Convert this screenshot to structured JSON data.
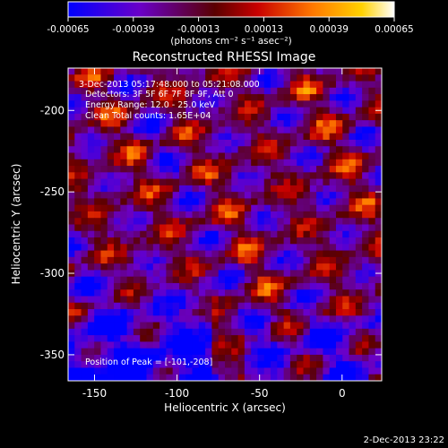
{
  "chart_data": {
    "type": "heatmap",
    "title": "Reconstructed RHESSI Image",
    "xlabel": "Heliocentric X (arcsec)",
    "ylabel": "Heliocentric Y (arcsec)",
    "xlim": [
      -166,
      24
    ],
    "ylim": [
      -366,
      -174
    ],
    "x_ticks": [
      -150,
      -100,
      -50,
      0
    ],
    "y_ticks": [
      -200,
      -250,
      -300,
      -350
    ],
    "colorbar": {
      "ticks": [
        "-0.00065",
        "-0.00039",
        "-0.00013",
        "0.00013",
        "0.00039",
        "0.00065"
      ],
      "range": [
        -0.00065,
        0.00065
      ],
      "unit_label": "(photons cm⁻² s⁻¹ asec⁻²)",
      "colormap": [
        "#0000ff",
        "#6a00c8",
        "#5a0000",
        "#c80000",
        "#ff7800",
        "#ffd200",
        "#ffffff"
      ]
    },
    "annotations": [
      " 3-Dec-2013 05:17:48.000 to 05:21:08.000",
      "Detectors: 3F 5F 6F 7F 8F 9F, Att 0",
      "Energy Range: 12.0 - 25.0 keV",
      "Clean    Total counts: 1.65E+04"
    ],
    "peak": {
      "label": "Position of Peak = [-101,-208]",
      "x": -101,
      "y": -208
    },
    "grid": {
      "rows": 48,
      "cols": 48
    }
  },
  "footer": {
    "date": "2-Dec-2013 23:22"
  }
}
